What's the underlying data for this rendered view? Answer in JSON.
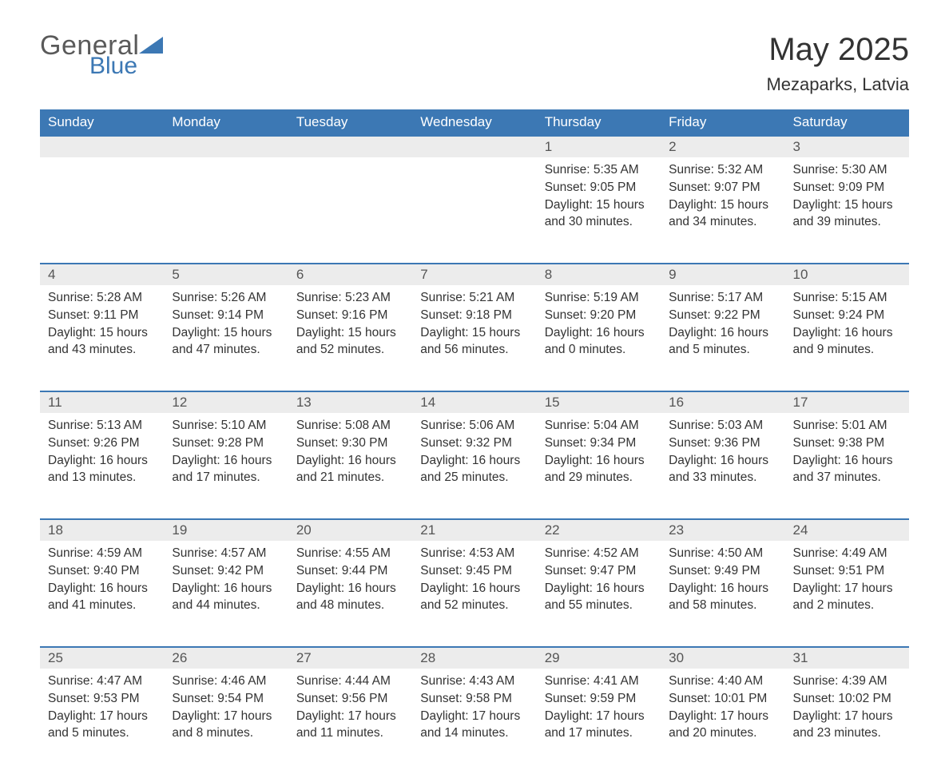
{
  "logo": {
    "general": "General",
    "blue": "Blue"
  },
  "title": {
    "month": "May 2025",
    "location": "Mezaparks, Latvia"
  },
  "colors": {
    "header_bg": "#3c78b4",
    "header_fg": "#ffffff",
    "daynum_bg": "#ececec",
    "border": "#3c78b4",
    "text": "#333333"
  },
  "weekdays": [
    "Sunday",
    "Monday",
    "Tuesday",
    "Wednesday",
    "Thursday",
    "Friday",
    "Saturday"
  ],
  "labels": {
    "sunrise": "Sunrise:",
    "sunset": "Sunset:",
    "daylight": "Daylight:"
  },
  "start_day_index": 4,
  "days": [
    {
      "n": 1,
      "sunrise": "5:35 AM",
      "sunset": "9:05 PM",
      "daylight": "15 hours and 30 minutes."
    },
    {
      "n": 2,
      "sunrise": "5:32 AM",
      "sunset": "9:07 PM",
      "daylight": "15 hours and 34 minutes."
    },
    {
      "n": 3,
      "sunrise": "5:30 AM",
      "sunset": "9:09 PM",
      "daylight": "15 hours and 39 minutes."
    },
    {
      "n": 4,
      "sunrise": "5:28 AM",
      "sunset": "9:11 PM",
      "daylight": "15 hours and 43 minutes."
    },
    {
      "n": 5,
      "sunrise": "5:26 AM",
      "sunset": "9:14 PM",
      "daylight": "15 hours and 47 minutes."
    },
    {
      "n": 6,
      "sunrise": "5:23 AM",
      "sunset": "9:16 PM",
      "daylight": "15 hours and 52 minutes."
    },
    {
      "n": 7,
      "sunrise": "5:21 AM",
      "sunset": "9:18 PM",
      "daylight": "15 hours and 56 minutes."
    },
    {
      "n": 8,
      "sunrise": "5:19 AM",
      "sunset": "9:20 PM",
      "daylight": "16 hours and 0 minutes."
    },
    {
      "n": 9,
      "sunrise": "5:17 AM",
      "sunset": "9:22 PM",
      "daylight": "16 hours and 5 minutes."
    },
    {
      "n": 10,
      "sunrise": "5:15 AM",
      "sunset": "9:24 PM",
      "daylight": "16 hours and 9 minutes."
    },
    {
      "n": 11,
      "sunrise": "5:13 AM",
      "sunset": "9:26 PM",
      "daylight": "16 hours and 13 minutes."
    },
    {
      "n": 12,
      "sunrise": "5:10 AM",
      "sunset": "9:28 PM",
      "daylight": "16 hours and 17 minutes."
    },
    {
      "n": 13,
      "sunrise": "5:08 AM",
      "sunset": "9:30 PM",
      "daylight": "16 hours and 21 minutes."
    },
    {
      "n": 14,
      "sunrise": "5:06 AM",
      "sunset": "9:32 PM",
      "daylight": "16 hours and 25 minutes."
    },
    {
      "n": 15,
      "sunrise": "5:04 AM",
      "sunset": "9:34 PM",
      "daylight": "16 hours and 29 minutes."
    },
    {
      "n": 16,
      "sunrise": "5:03 AM",
      "sunset": "9:36 PM",
      "daylight": "16 hours and 33 minutes."
    },
    {
      "n": 17,
      "sunrise": "5:01 AM",
      "sunset": "9:38 PM",
      "daylight": "16 hours and 37 minutes."
    },
    {
      "n": 18,
      "sunrise": "4:59 AM",
      "sunset": "9:40 PM",
      "daylight": "16 hours and 41 minutes."
    },
    {
      "n": 19,
      "sunrise": "4:57 AM",
      "sunset": "9:42 PM",
      "daylight": "16 hours and 44 minutes."
    },
    {
      "n": 20,
      "sunrise": "4:55 AM",
      "sunset": "9:44 PM",
      "daylight": "16 hours and 48 minutes."
    },
    {
      "n": 21,
      "sunrise": "4:53 AM",
      "sunset": "9:45 PM",
      "daylight": "16 hours and 52 minutes."
    },
    {
      "n": 22,
      "sunrise": "4:52 AM",
      "sunset": "9:47 PM",
      "daylight": "16 hours and 55 minutes."
    },
    {
      "n": 23,
      "sunrise": "4:50 AM",
      "sunset": "9:49 PM",
      "daylight": "16 hours and 58 minutes."
    },
    {
      "n": 24,
      "sunrise": "4:49 AM",
      "sunset": "9:51 PM",
      "daylight": "17 hours and 2 minutes."
    },
    {
      "n": 25,
      "sunrise": "4:47 AM",
      "sunset": "9:53 PM",
      "daylight": "17 hours and 5 minutes."
    },
    {
      "n": 26,
      "sunrise": "4:46 AM",
      "sunset": "9:54 PM",
      "daylight": "17 hours and 8 minutes."
    },
    {
      "n": 27,
      "sunrise": "4:44 AM",
      "sunset": "9:56 PM",
      "daylight": "17 hours and 11 minutes."
    },
    {
      "n": 28,
      "sunrise": "4:43 AM",
      "sunset": "9:58 PM",
      "daylight": "17 hours and 14 minutes."
    },
    {
      "n": 29,
      "sunrise": "4:41 AM",
      "sunset": "9:59 PM",
      "daylight": "17 hours and 17 minutes."
    },
    {
      "n": 30,
      "sunrise": "4:40 AM",
      "sunset": "10:01 PM",
      "daylight": "17 hours and 20 minutes."
    },
    {
      "n": 31,
      "sunrise": "4:39 AM",
      "sunset": "10:02 PM",
      "daylight": "17 hours and 23 minutes."
    }
  ]
}
